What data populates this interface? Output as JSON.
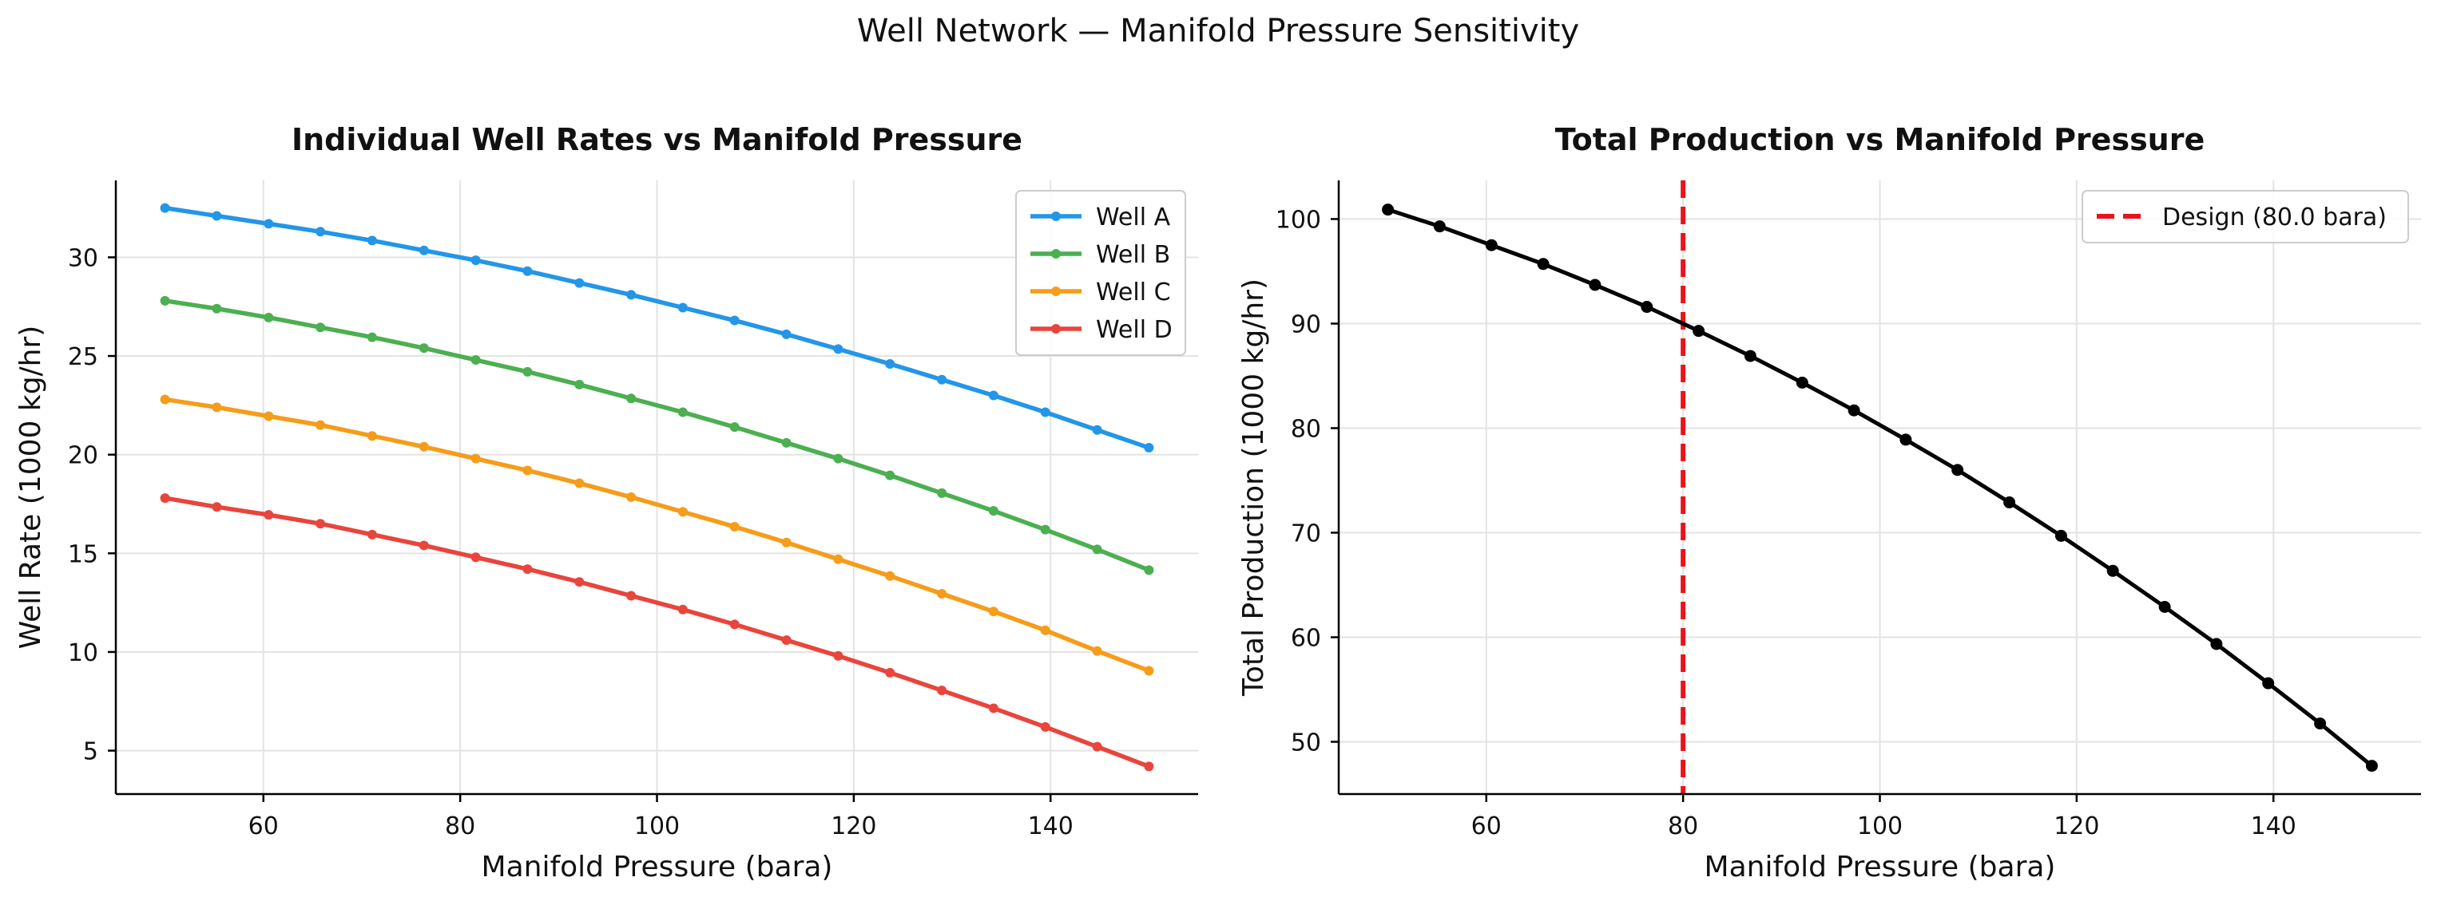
{
  "figure": {
    "suptitle": "Well Network — Manifold Pressure Sensitivity"
  },
  "chart_data": [
    {
      "type": "line",
      "title": "Individual Well Rates vs Manifold Pressure",
      "xlabel": "Manifold Pressure (bara)",
      "ylabel": "Well Rate (1000 kg/hr)",
      "xlim": [
        45,
        155
      ],
      "ylim": [
        2.8,
        33.9
      ],
      "xticks": [
        60,
        80,
        100,
        120,
        140
      ],
      "yticks": [
        5,
        10,
        15,
        20,
        25,
        30
      ],
      "grid": true,
      "legend": "top-right",
      "x": [
        50,
        55.26,
        60.53,
        65.79,
        71.05,
        76.32,
        81.58,
        86.84,
        92.11,
        97.37,
        102.63,
        107.89,
        113.16,
        118.42,
        123.68,
        128.95,
        134.21,
        139.47,
        144.74,
        150
      ],
      "series": [
        {
          "name": "Well A",
          "color": "#2396e8",
          "values": [
            32.5,
            32.1,
            31.7,
            31.3,
            30.85,
            30.35,
            29.85,
            29.3,
            28.7,
            28.1,
            27.45,
            26.8,
            26.1,
            25.35,
            24.6,
            23.8,
            23.0,
            22.15,
            21.25,
            20.35
          ]
        },
        {
          "name": "Well B",
          "color": "#4caf50",
          "values": [
            27.8,
            27.4,
            26.95,
            26.45,
            25.95,
            25.4,
            24.8,
            24.2,
            23.55,
            22.85,
            22.15,
            21.4,
            20.6,
            19.8,
            18.95,
            18.05,
            17.15,
            16.2,
            15.2,
            14.15
          ]
        },
        {
          "name": "Well C",
          "color": "#f59c1a",
          "values": [
            22.8,
            22.4,
            21.95,
            21.5,
            20.95,
            20.4,
            19.8,
            19.2,
            18.55,
            17.85,
            17.1,
            16.35,
            15.55,
            14.7,
            13.85,
            12.95,
            12.05,
            11.1,
            10.05,
            9.05
          ]
        },
        {
          "name": "Well D",
          "color": "#e8453c",
          "values": [
            17.8,
            17.35,
            16.95,
            16.5,
            15.95,
            15.4,
            14.8,
            14.2,
            13.55,
            12.85,
            12.15,
            11.4,
            10.6,
            9.8,
            8.95,
            8.05,
            7.15,
            6.2,
            5.2,
            4.2
          ]
        }
      ]
    },
    {
      "type": "line",
      "title": "Total Production vs Manifold Pressure",
      "xlabel": "Manifold Pressure (bara)",
      "ylabel": "Total Production (1000 kg/hr)",
      "xlim": [
        45,
        155
      ],
      "ylim": [
        45,
        103.7
      ],
      "xticks": [
        60,
        80,
        100,
        120,
        140
      ],
      "yticks": [
        50,
        60,
        70,
        80,
        90,
        100
      ],
      "grid": true,
      "legend": "top-right",
      "x": [
        50,
        55.26,
        60.53,
        65.79,
        71.05,
        76.32,
        81.58,
        86.84,
        92.11,
        97.37,
        102.63,
        107.89,
        113.16,
        118.42,
        123.68,
        128.95,
        134.21,
        139.47,
        144.74,
        150
      ],
      "series": [
        {
          "name": "",
          "color": "#000000",
          "values": [
            100.9,
            99.3,
            97.5,
            95.7,
            93.7,
            91.6,
            89.3,
            86.9,
            84.35,
            81.7,
            78.9,
            76.0,
            72.9,
            69.7,
            66.35,
            62.9,
            59.35,
            55.6,
            51.75,
            47.7
          ]
        }
      ],
      "reference_line": {
        "orientation": "vertical",
        "x": 80,
        "color": "#e8141c",
        "label": "Design (80.0 bara)"
      }
    }
  ]
}
